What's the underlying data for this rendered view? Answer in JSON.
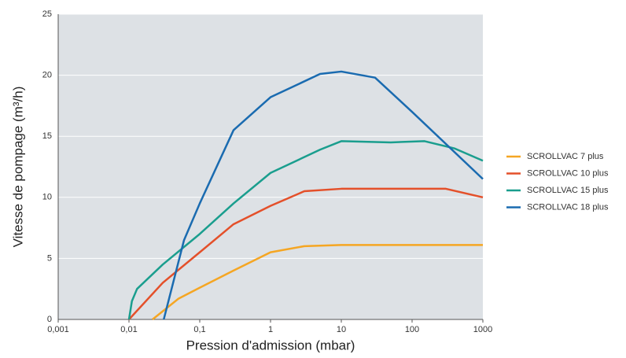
{
  "chart_data": {
    "type": "line",
    "x_label": "Pression d'admission (mbar)",
    "y_label": "Vitesse de pompage (m³/h)",
    "xscale": "log",
    "xlim": [
      0.001,
      1000
    ],
    "xticks": [
      {
        "value": 0.001,
        "label": "0,001"
      },
      {
        "value": 0.01,
        "label": "0,01"
      },
      {
        "value": 0.1,
        "label": "0,1"
      },
      1,
      10,
      100,
      1000
    ],
    "ylim": [
      0,
      25
    ],
    "yticks": [
      0,
      5,
      10,
      15,
      20,
      25
    ],
    "grid": true,
    "legend": "right",
    "series": [
      {
        "name": "SCROLLVAC 7 plus",
        "color": "#f5a623",
        "x": [
          0.0215,
          0.05,
          0.1,
          0.3,
          1,
          3,
          10,
          100,
          1000
        ],
        "values": [
          0,
          1.7,
          2.6,
          4,
          5.5,
          6.0,
          6.1,
          6.1,
          6.1
        ]
      },
      {
        "name": "SCROLLVAC 10 plus",
        "color": "#e4502a",
        "x": [
          0.01,
          0.03,
          0.1,
          0.3,
          1,
          3,
          10,
          100,
          300,
          1000
        ],
        "values": [
          0,
          3,
          5.5,
          7.8,
          9.3,
          10.5,
          10.7,
          10.7,
          10.7,
          10.0
        ]
      },
      {
        "name": "SCROLLVAC 15 plus",
        "color": "#1a9e8e",
        "x": [
          0.01,
          0.011,
          0.013,
          0.03,
          0.1,
          0.3,
          1,
          5,
          10,
          50,
          150,
          400,
          1000
        ],
        "values": [
          0,
          1.5,
          2.5,
          4.5,
          7,
          9.5,
          12,
          13.9,
          14.6,
          14.5,
          14.6,
          14.0,
          13.0
        ]
      },
      {
        "name": "SCROLLVAC 18 plus",
        "color": "#1a6bb0",
        "x": [
          0.031,
          0.06,
          0.1,
          0.3,
          1,
          5,
          10,
          30,
          100,
          1000
        ],
        "values": [
          0,
          6.5,
          9.5,
          15.5,
          18.2,
          20.1,
          20.3,
          19.8,
          17,
          11.5
        ]
      }
    ]
  }
}
